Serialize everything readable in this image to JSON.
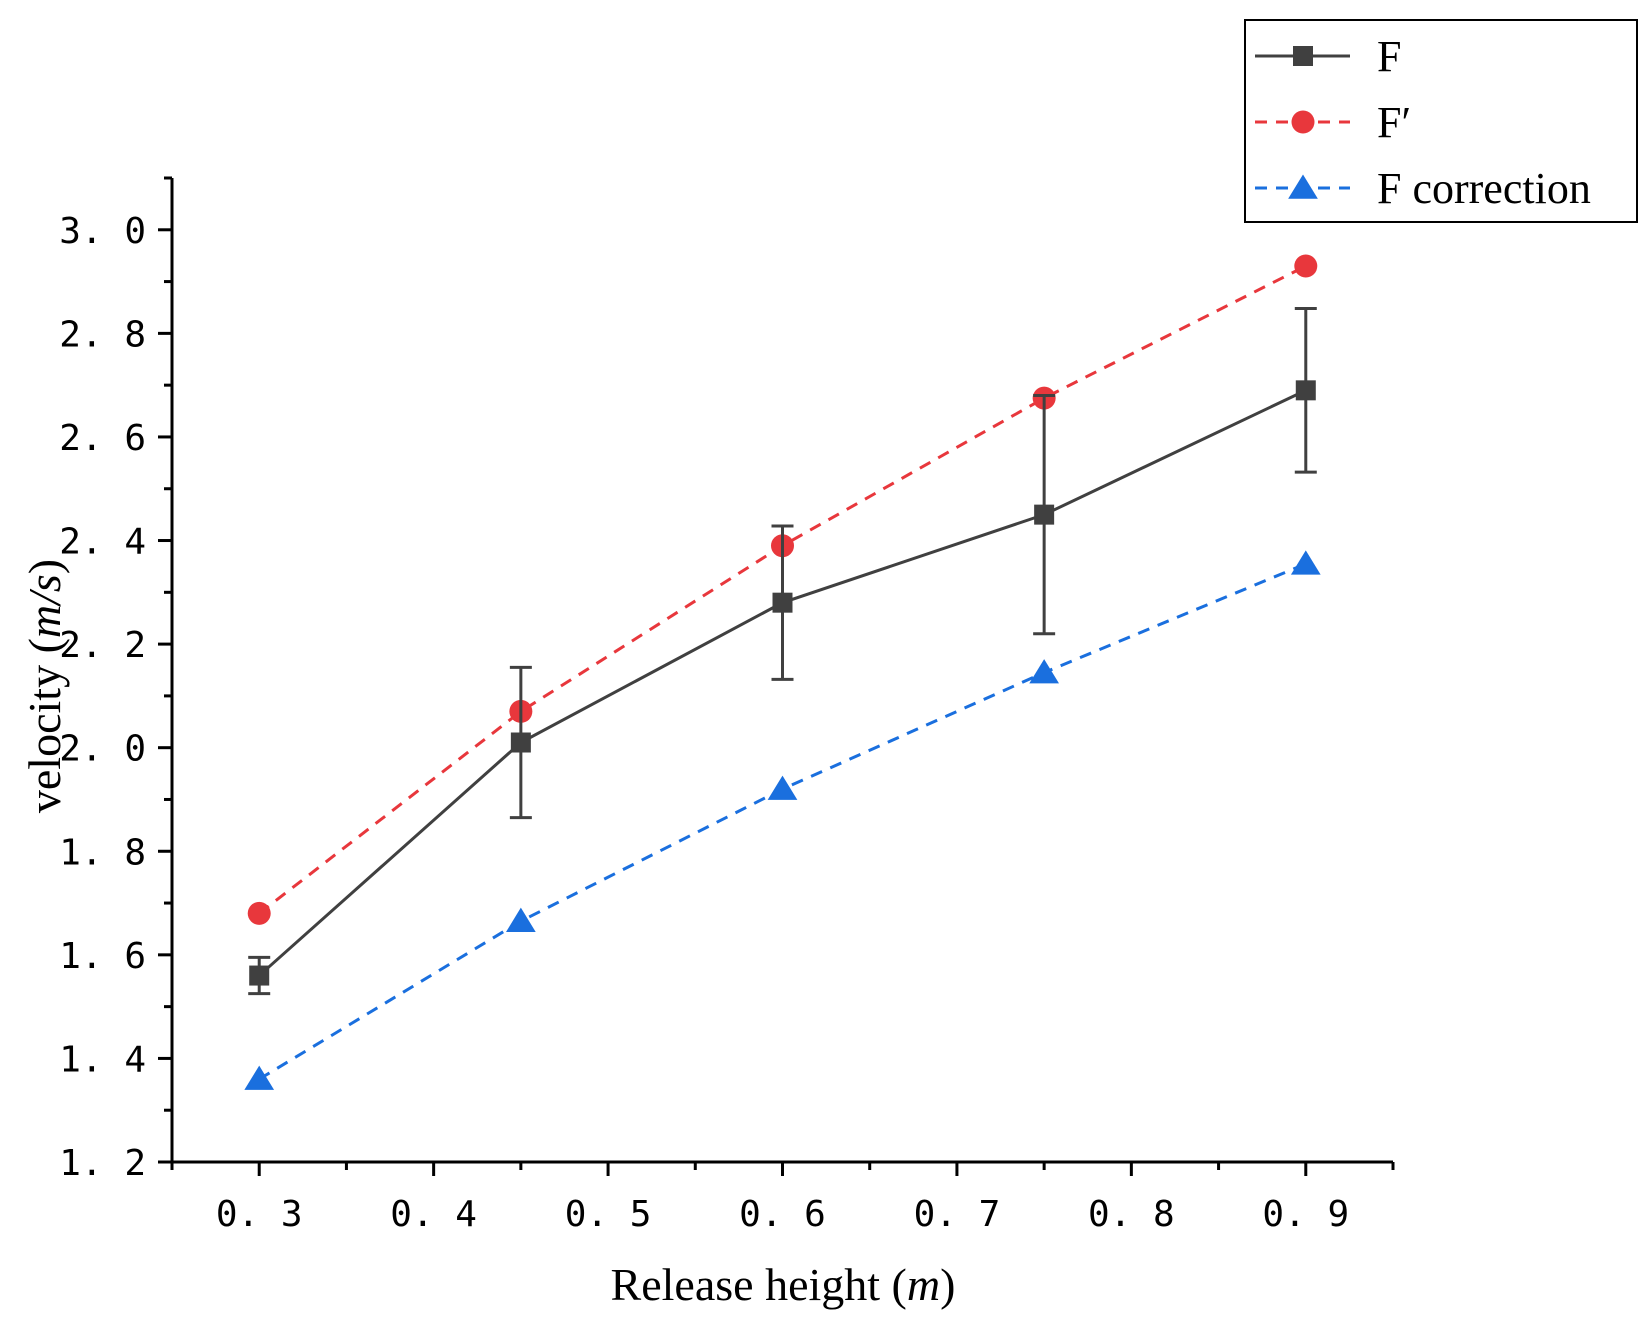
{
  "chart_data": {
    "type": "line",
    "title": "",
    "xlabel": {
      "text": "Release height (",
      "italic": "m",
      "suffix": ")"
    },
    "ylabel": {
      "text": "velocity (",
      "italic": "m/s",
      "suffix": ")"
    },
    "xlim": [
      0.25,
      0.95
    ],
    "ylim": [
      1.2,
      3.1
    ],
    "x_ticks": [
      0.3,
      0.4,
      0.5,
      0.6,
      0.7,
      0.8,
      0.9
    ],
    "x_tick_labels": [
      "0. 3",
      "0. 4",
      "0. 5",
      "0. 6",
      "0. 7",
      "0. 8",
      "0. 9"
    ],
    "y_ticks": [
      1.2,
      1.4,
      1.6,
      1.8,
      2.0,
      2.2,
      2.4,
      2.6,
      2.8,
      3.0
    ],
    "y_tick_labels": [
      "1. 2",
      "1. 4",
      "1. 6",
      "1. 8",
      "2. 0",
      "2. 2",
      "2. 4",
      "2. 6",
      "2. 8",
      "3. 0"
    ],
    "grid": false,
    "legend_position": "top-right",
    "series": [
      {
        "name": "F",
        "color": "#404040",
        "marker": "square",
        "line_style": "solid",
        "x": [
          0.3,
          0.45,
          0.6,
          0.75,
          0.9
        ],
        "y": [
          1.56,
          2.01,
          2.28,
          2.45,
          2.69
        ],
        "error": [
          0.035,
          0.145,
          0.148,
          0.23,
          0.158
        ]
      },
      {
        "name": "F′",
        "color": "#e8373c",
        "marker": "circle",
        "line_style": "dashed",
        "x": [
          0.3,
          0.45,
          0.6,
          0.75,
          0.9
        ],
        "y": [
          1.68,
          2.07,
          2.39,
          2.675,
          2.93
        ]
      },
      {
        "name": "F correction",
        "color": "#1a6fde",
        "marker": "triangle",
        "line_style": "dashed",
        "x": [
          0.3,
          0.45,
          0.6,
          0.75,
          0.9
        ],
        "y": [
          1.36,
          1.665,
          1.92,
          2.145,
          2.355
        ]
      }
    ]
  }
}
